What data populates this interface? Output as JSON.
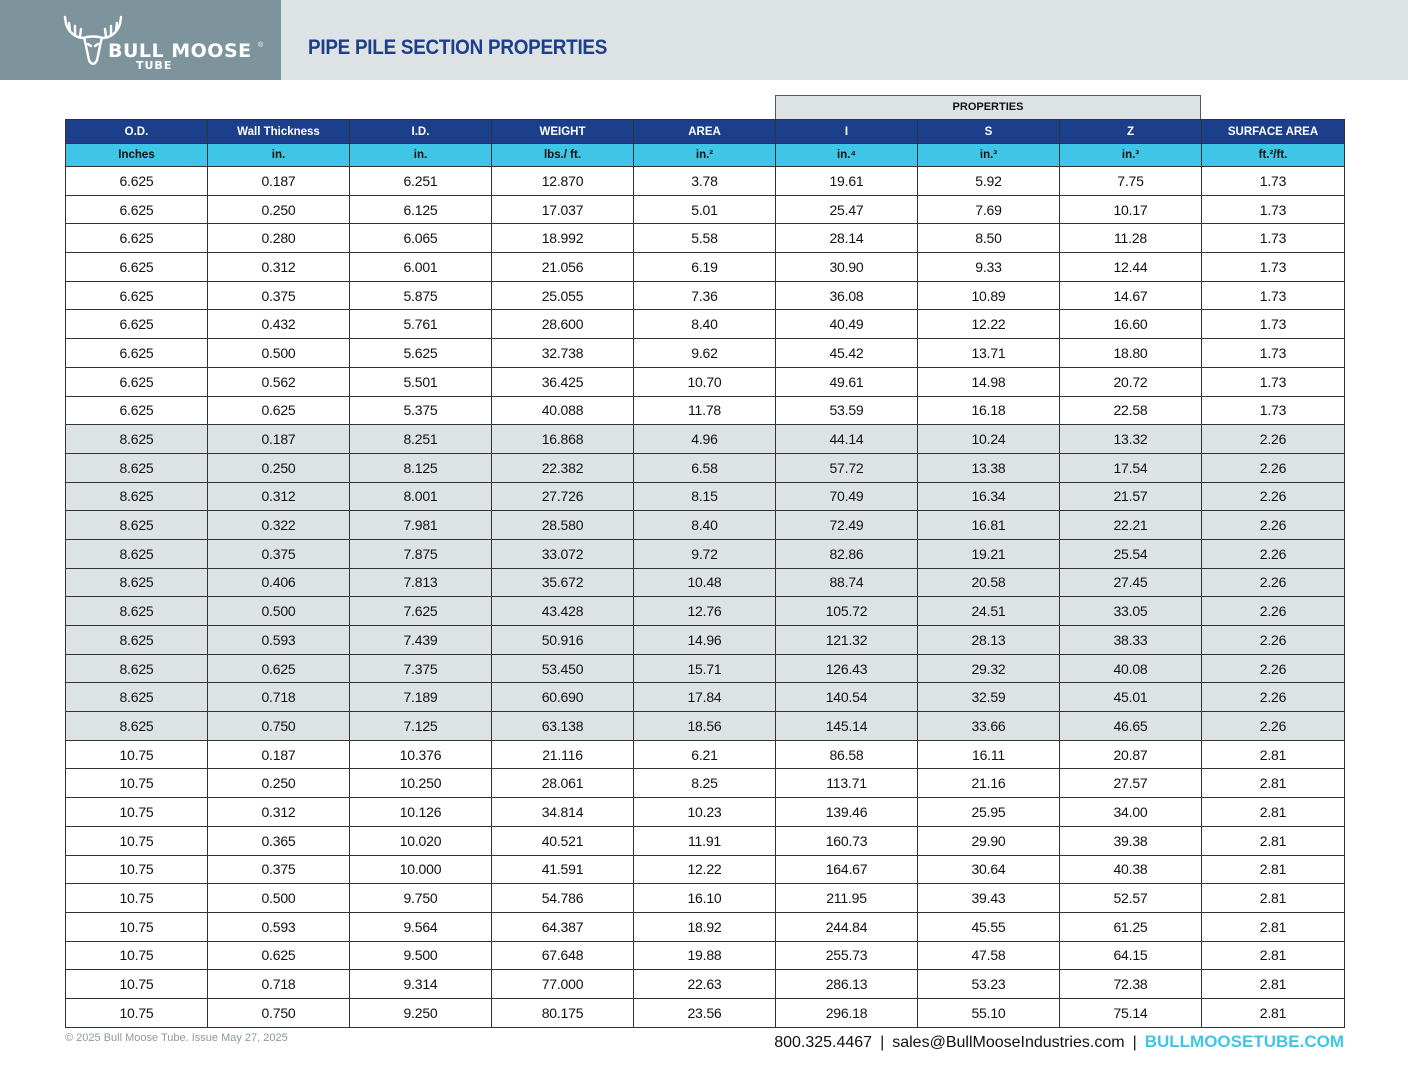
{
  "header": {
    "brand": "BULL MOOSE",
    "brand_sub": "TUBE",
    "trademark": "®",
    "title": "PIPE PILE SECTION PROPERTIES"
  },
  "table": {
    "group_label": "PROPERTIES",
    "columns": [
      "O.D.",
      "Wall Thickness",
      "I.D.",
      "WEIGHT",
      "AREA",
      "I",
      "S",
      "Z",
      "SURFACE AREA"
    ],
    "units": [
      "Inches",
      "in.",
      "in.",
      "lbs./ ft.",
      "in.²",
      "in.⁴",
      "in.³",
      "in.³",
      "ft.²/ft."
    ],
    "rows": [
      [
        "6.625",
        "0.187",
        "6.251",
        "12.870",
        "3.78",
        "19.61",
        "5.92",
        "7.75",
        "1.73"
      ],
      [
        "6.625",
        "0.250",
        "6.125",
        "17.037",
        "5.01",
        "25.47",
        "7.69",
        "10.17",
        "1.73"
      ],
      [
        "6.625",
        "0.280",
        "6.065",
        "18.992",
        "5.58",
        "28.14",
        "8.50",
        "11.28",
        "1.73"
      ],
      [
        "6.625",
        "0.312",
        "6.001",
        "21.056",
        "6.19",
        "30.90",
        "9.33",
        "12.44",
        "1.73"
      ],
      [
        "6.625",
        "0.375",
        "5.875",
        "25.055",
        "7.36",
        "36.08",
        "10.89",
        "14.67",
        "1.73"
      ],
      [
        "6.625",
        "0.432",
        "5.761",
        "28.600",
        "8.40",
        "40.49",
        "12.22",
        "16.60",
        "1.73"
      ],
      [
        "6.625",
        "0.500",
        "5.625",
        "32.738",
        "9.62",
        "45.42",
        "13.71",
        "18.80",
        "1.73"
      ],
      [
        "6.625",
        "0.562",
        "5.501",
        "36.425",
        "10.70",
        "49.61",
        "14.98",
        "20.72",
        "1.73"
      ],
      [
        "6.625",
        "0.625",
        "5.375",
        "40.088",
        "11.78",
        "53.59",
        "16.18",
        "22.58",
        "1.73"
      ],
      [
        "8.625",
        "0.187",
        "8.251",
        "16.868",
        "4.96",
        "44.14",
        "10.24",
        "13.32",
        "2.26"
      ],
      [
        "8.625",
        "0.250",
        "8.125",
        "22.382",
        "6.58",
        "57.72",
        "13.38",
        "17.54",
        "2.26"
      ],
      [
        "8.625",
        "0.312",
        "8.001",
        "27.726",
        "8.15",
        "70.49",
        "16.34",
        "21.57",
        "2.26"
      ],
      [
        "8.625",
        "0.322",
        "7.981",
        "28.580",
        "8.40",
        "72.49",
        "16.81",
        "22.21",
        "2.26"
      ],
      [
        "8.625",
        "0.375",
        "7.875",
        "33.072",
        "9.72",
        "82.86",
        "19.21",
        "25.54",
        "2.26"
      ],
      [
        "8.625",
        "0.406",
        "7.813",
        "35.672",
        "10.48",
        "88.74",
        "20.58",
        "27.45",
        "2.26"
      ],
      [
        "8.625",
        "0.500",
        "7.625",
        "43.428",
        "12.76",
        "105.72",
        "24.51",
        "33.05",
        "2.26"
      ],
      [
        "8.625",
        "0.593",
        "7.439",
        "50.916",
        "14.96",
        "121.32",
        "28.13",
        "38.33",
        "2.26"
      ],
      [
        "8.625",
        "0.625",
        "7.375",
        "53.450",
        "15.71",
        "126.43",
        "29.32",
        "40.08",
        "2.26"
      ],
      [
        "8.625",
        "0.718",
        "7.189",
        "60.690",
        "17.84",
        "140.54",
        "32.59",
        "45.01",
        "2.26"
      ],
      [
        "8.625",
        "0.750",
        "7.125",
        "63.138",
        "18.56",
        "145.14",
        "33.66",
        "46.65",
        "2.26"
      ],
      [
        "10.75",
        "0.187",
        "10.376",
        "21.116",
        "6.21",
        "86.58",
        "16.11",
        "20.87",
        "2.81"
      ],
      [
        "10.75",
        "0.250",
        "10.250",
        "28.061",
        "8.25",
        "113.71",
        "21.16",
        "27.57",
        "2.81"
      ],
      [
        "10.75",
        "0.312",
        "10.126",
        "34.814",
        "10.23",
        "139.46",
        "25.95",
        "34.00",
        "2.81"
      ],
      [
        "10.75",
        "0.365",
        "10.020",
        "40.521",
        "11.91",
        "160.73",
        "29.90",
        "39.38",
        "2.81"
      ],
      [
        "10.75",
        "0.375",
        "10.000",
        "41.591",
        "12.22",
        "164.67",
        "30.64",
        "40.38",
        "2.81"
      ],
      [
        "10.75",
        "0.500",
        "9.750",
        "54.786",
        "16.10",
        "211.95",
        "39.43",
        "52.57",
        "2.81"
      ],
      [
        "10.75",
        "0.593",
        "9.564",
        "64.387",
        "18.92",
        "244.84",
        "45.55",
        "61.25",
        "2.81"
      ],
      [
        "10.75",
        "0.625",
        "9.500",
        "67.648",
        "19.88",
        "255.73",
        "47.58",
        "64.15",
        "2.81"
      ],
      [
        "10.75",
        "0.718",
        "9.314",
        "77.000",
        "22.63",
        "286.13",
        "53.23",
        "72.38",
        "2.81"
      ],
      [
        "10.75",
        "0.750",
        "9.250",
        "80.175",
        "23.56",
        "296.18",
        "55.10",
        "75.14",
        "2.81"
      ]
    ]
  },
  "footer": {
    "copyright": "© 2025 Bull Moose Tube. Issue May 27, 2025",
    "phone": "800.325.4467",
    "separator": "|",
    "email": "sales@BullMooseIndustries.com",
    "website": "BULLMOOSETUBE.COM"
  },
  "colors": {
    "header_bg": "#dde2e4",
    "logo_bg": "#7d949c",
    "title": "#1c3f8c",
    "column_header": "#1c3f8c",
    "unit_header": "#3fc6e6",
    "shaded_row": "#dde2e4",
    "website": "#3fc6e6"
  },
  "icons": {
    "logo": "moose-antlers-icon"
  }
}
